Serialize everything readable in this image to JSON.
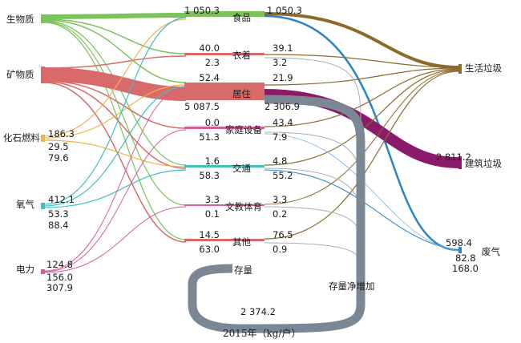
{
  "caption": "2015年（kg/户）",
  "colors": {
    "bio": "#7cc25a",
    "mineral": "#d86a6a",
    "fossil": "#f2b24a",
    "oxygen": "#3fbfbf",
    "electric": "#d85a9a",
    "food_out": "#8b6a2a",
    "housing_out": "#8b1a6a",
    "stock": "#7a8794",
    "gas": "#2b84c4",
    "other_out": "#a7b0b8"
  },
  "sources": [
    {
      "id": "bio",
      "label": "生物质",
      "values": []
    },
    {
      "id": "mineral",
      "label": "矿物质",
      "values": []
    },
    {
      "id": "fossil",
      "label": "化石燃料",
      "values": [
        "186.3",
        "29.5",
        "79.6"
      ]
    },
    {
      "id": "oxygen",
      "label": "氧气",
      "values": [
        "412.1",
        "53.3",
        "88.4"
      ]
    },
    {
      "id": "electric",
      "label": "电力",
      "values": [
        "124.8",
        "156.0",
        "307.9"
      ]
    }
  ],
  "middle": [
    {
      "id": "food",
      "label": "食品",
      "in_top": "1 050.3",
      "in_bottom": "",
      "out_top": "1 050.3",
      "out_bottom": ""
    },
    {
      "id": "clothing",
      "label": "衣着",
      "in_top": "40.0",
      "in_bottom": "2.3",
      "out_top": "39.1",
      "out_bottom": "3.2"
    },
    {
      "id": "housing",
      "label": "居住",
      "in_top": "52.4",
      "in_bottom": "5 087.5",
      "out_top": "21.9",
      "out_bottom": "2 306.9"
    },
    {
      "id": "appliance",
      "label": "家庭设备",
      "in_top": "0.0",
      "in_bottom": "51.3",
      "out_top": "43.4",
      "out_bottom": "7.9"
    },
    {
      "id": "transport",
      "label": "交通",
      "in_top": "1.6",
      "in_bottom": "58.3",
      "out_top": "4.8",
      "out_bottom": "55.2"
    },
    {
      "id": "culture",
      "label": "文教体育",
      "in_top": "3.3",
      "in_bottom": "0.1",
      "out_top": "3.3",
      "out_bottom": "0.2"
    },
    {
      "id": "other",
      "label": "其他",
      "in_top": "14.5",
      "in_bottom": "63.0",
      "out_top": "76.5",
      "out_bottom": "0.9"
    }
  ],
  "stock": {
    "label": "存量",
    "loop_value": "2 374.2",
    "increase_label": "存量净增加"
  },
  "outputs": [
    {
      "id": "household_waste",
      "label": "生活垃圾",
      "values": []
    },
    {
      "id": "construction_waste",
      "label": "建筑垃圾",
      "values": [
        "2 811.2"
      ]
    },
    {
      "id": "waste_gas",
      "label": "废气",
      "values": [
        "598.4",
        "82.8",
        "168.0"
      ]
    }
  ]
}
